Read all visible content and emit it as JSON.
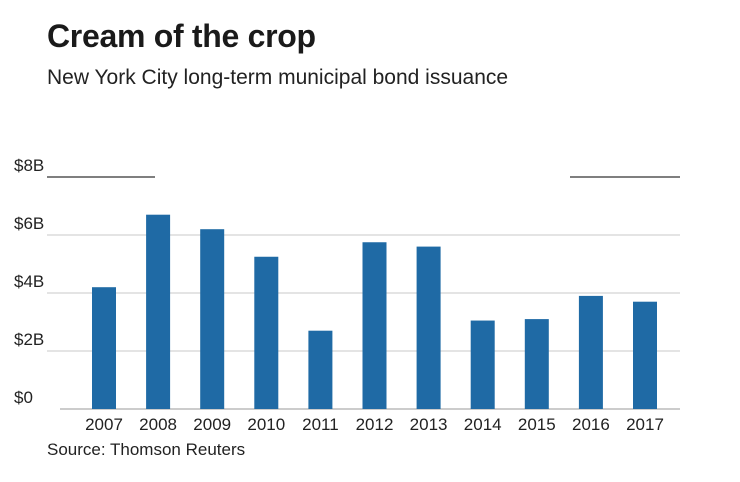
{
  "header": {
    "title": "Cream of the crop",
    "subtitle": "New York City long-term municipal bond issuance"
  },
  "footer": {
    "source": "Source: Thomson Reuters"
  },
  "colors": {
    "bar": "#1f6aa5",
    "grid": "#c8c8c8",
    "top_rule": "#333333",
    "axis": "#999999"
  },
  "chart_data": {
    "type": "bar",
    "title": "Cream of the crop",
    "subtitle": "New York City long-term municipal bond issuance",
    "xlabel": "",
    "ylabel": "",
    "categories": [
      "2007",
      "2008",
      "2009",
      "2010",
      "2011",
      "2012",
      "2013",
      "2014",
      "2015",
      "2016",
      "2017"
    ],
    "series": [
      {
        "values": [
          4.2,
          6.7,
          6.2,
          5.25,
          2.7,
          5.75,
          5.6,
          3.05,
          3.1,
          3.9,
          3.7
        ]
      }
    ],
    "ylim": [
      0,
      8
    ],
    "yticks": [
      0,
      2,
      4,
      6,
      8
    ],
    "ytick_labels": [
      "$0",
      "$2B",
      "$4B",
      "$6B",
      "$8B"
    ],
    "grid": true,
    "legend": "none"
  }
}
